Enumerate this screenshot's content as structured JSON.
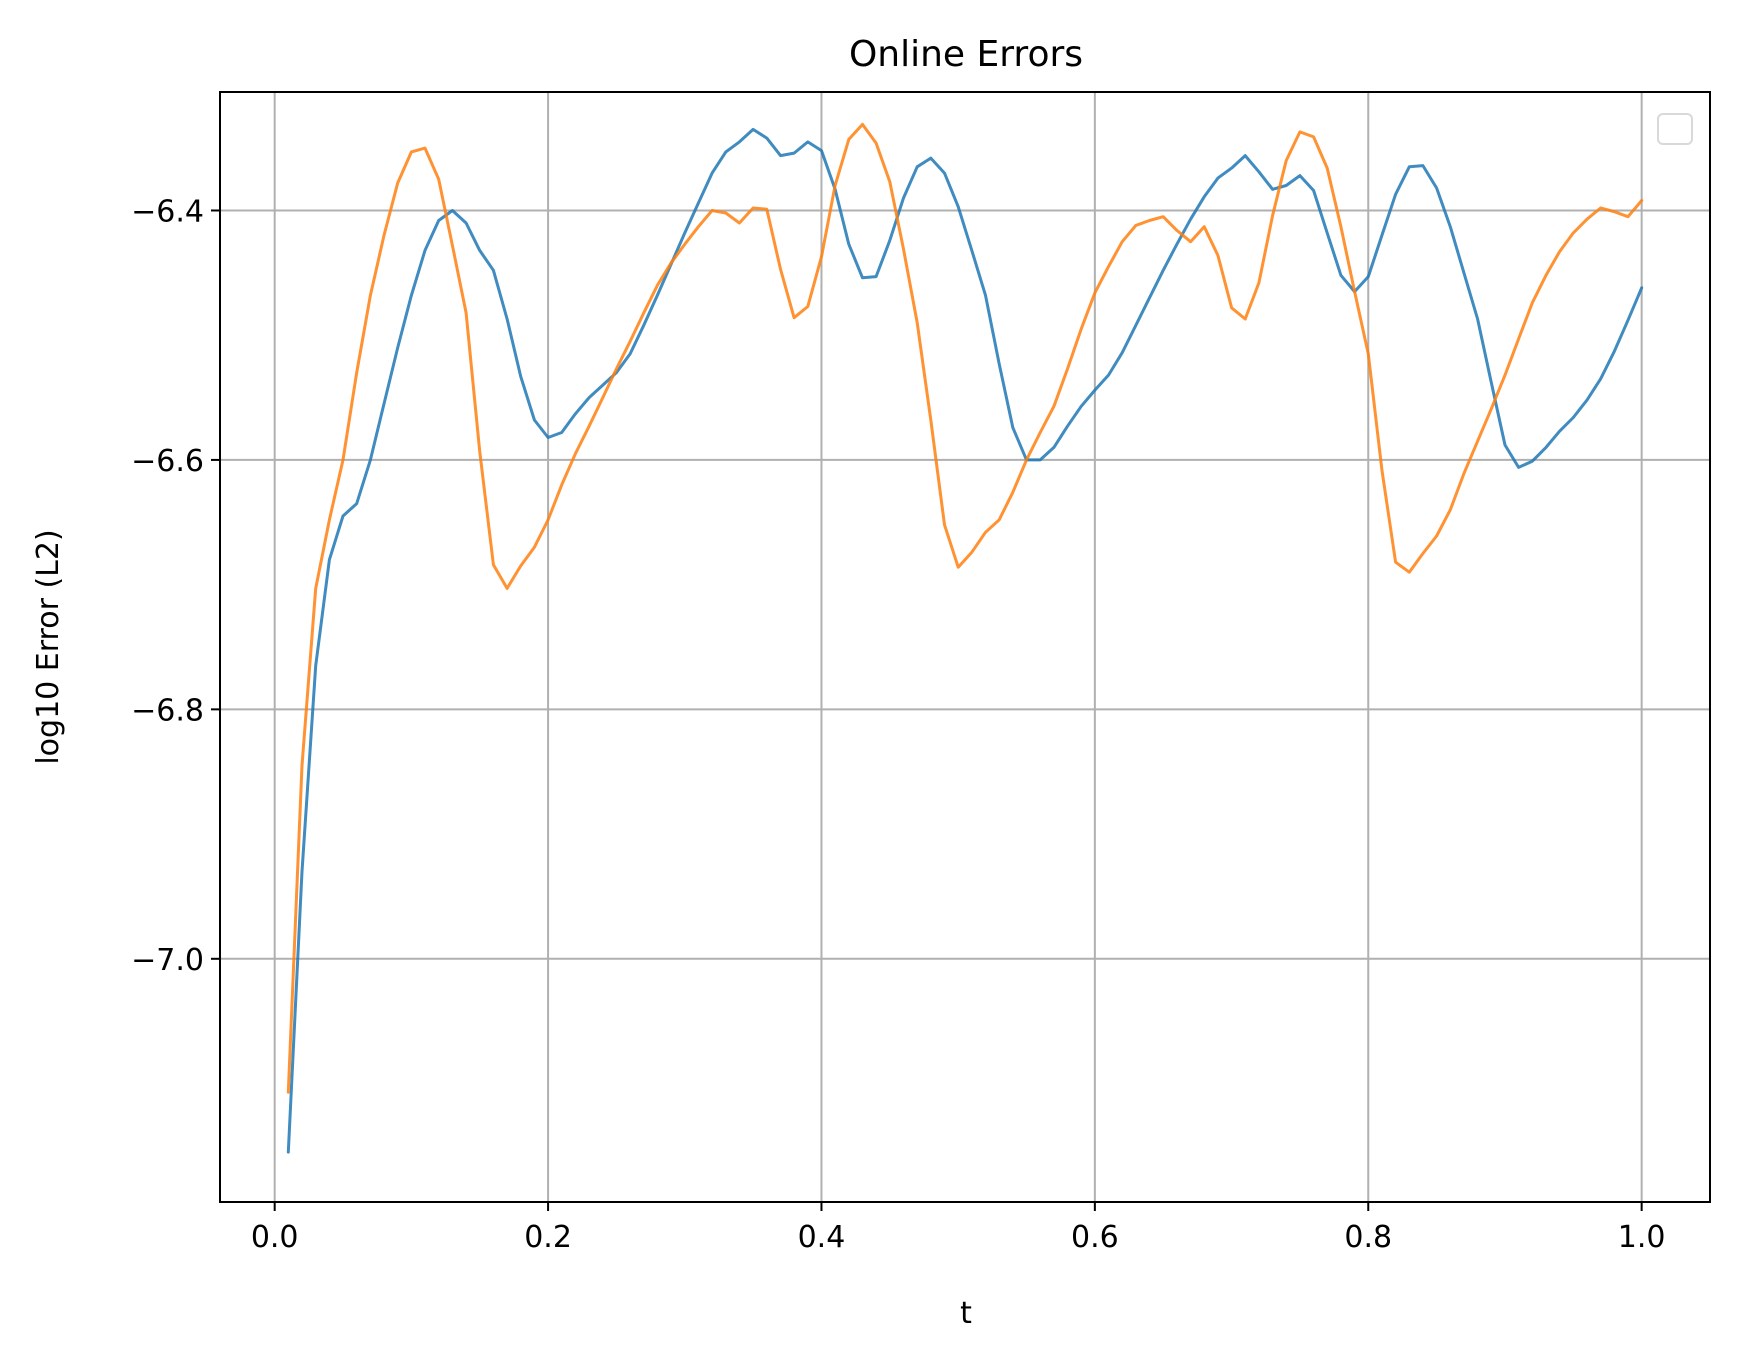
{
  "chart_data": {
    "type": "line",
    "title": "Online Errors",
    "xlabel": "t",
    "ylabel": "log10 Error (L2)",
    "xlim": [
      -0.04,
      1.05
    ],
    "ylim": [
      -7.195,
      -6.305
    ],
    "xticks": [
      0.0,
      0.2,
      0.4,
      0.6,
      0.8,
      1.0
    ],
    "xtick_labels": [
      "0.0",
      "0.2",
      "0.4",
      "0.6",
      "0.8",
      "1.0"
    ],
    "yticks": [
      -7.0,
      -6.8,
      -6.6,
      -6.4
    ],
    "ytick_labels": [
      "−7.0",
      "−6.8",
      "−6.6",
      "−6.4"
    ],
    "grid": true,
    "legend": "top-right, empty",
    "x": [
      0.01,
      0.02,
      0.03,
      0.04,
      0.05,
      0.06,
      0.07,
      0.08,
      0.09,
      0.1,
      0.11,
      0.12,
      0.13,
      0.14,
      0.15,
      0.16,
      0.17,
      0.18,
      0.19,
      0.2,
      0.21,
      0.22,
      0.23,
      0.24,
      0.25,
      0.26,
      0.27,
      0.28,
      0.29,
      0.3,
      0.31,
      0.32,
      0.33,
      0.34,
      0.35,
      0.36,
      0.37,
      0.38,
      0.39,
      0.4,
      0.41,
      0.42,
      0.43,
      0.44,
      0.45,
      0.46,
      0.47,
      0.48,
      0.49,
      0.5,
      0.51,
      0.52,
      0.53,
      0.54,
      0.55,
      0.56,
      0.57,
      0.58,
      0.59,
      0.6,
      0.61,
      0.62,
      0.63,
      0.64,
      0.65,
      0.66,
      0.67,
      0.68,
      0.69,
      0.7,
      0.71,
      0.72,
      0.73,
      0.74,
      0.75,
      0.76,
      0.77,
      0.78,
      0.79,
      0.8,
      0.81,
      0.82,
      0.83,
      0.84,
      0.85,
      0.86,
      0.87,
      0.88,
      0.89,
      0.9,
      0.91,
      0.92,
      0.93,
      0.94,
      0.95,
      0.96,
      0.97,
      0.98,
      0.99,
      1.0
    ],
    "series": [
      {
        "color": "#1f77b4",
        "values": [
          -7.155,
          -6.93,
          -6.765,
          -6.68,
          -6.645,
          -6.635,
          -6.6,
          -6.555,
          -6.51,
          -6.468,
          -6.432,
          -6.408,
          -6.4,
          -6.41,
          -6.432,
          -6.448,
          -6.487,
          -6.533,
          -6.568,
          -6.582,
          -6.578,
          -6.563,
          -6.55,
          -6.54,
          -6.53,
          -6.515,
          -6.492,
          -6.468,
          -6.443,
          -6.418,
          -6.394,
          -6.37,
          -6.353,
          -6.345,
          -6.335,
          -6.342,
          -6.356,
          -6.354,
          -6.345,
          -6.352,
          -6.383,
          -6.427,
          -6.454,
          -6.453,
          -6.424,
          -6.39,
          -6.365,
          -6.358,
          -6.37,
          -6.397,
          -6.432,
          -6.468,
          -6.523,
          -6.574,
          -6.6,
          -6.6,
          -6.59,
          -6.573,
          -6.557,
          -6.544,
          -6.532,
          -6.514,
          -6.492,
          -6.47,
          -6.448,
          -6.427,
          -6.407,
          -6.389,
          -6.374,
          -6.366,
          -6.356,
          -6.369,
          -6.383,
          -6.38,
          -6.372,
          -6.384,
          -6.418,
          -6.452,
          -6.465,
          -6.453,
          -6.42,
          -6.387,
          -6.365,
          -6.364,
          -6.382,
          -6.413,
          -6.45,
          -6.487,
          -6.538,
          -6.588,
          -6.606,
          -6.601,
          -6.59,
          -6.577,
          -6.566,
          -6.552,
          -6.535,
          -6.513,
          -6.488,
          -6.462
        ]
      },
      {
        "color": "#ff7f0e",
        "values": [
          -7.107,
          -6.845,
          -6.703,
          -6.648,
          -6.6,
          -6.53,
          -6.468,
          -6.42,
          -6.378,
          -6.353,
          -6.35,
          -6.375,
          -6.428,
          -6.482,
          -6.593,
          -6.684,
          -6.703,
          -6.685,
          -6.67,
          -6.648,
          -6.62,
          -6.595,
          -6.573,
          -6.55,
          -6.527,
          -6.505,
          -6.482,
          -6.46,
          -6.442,
          -6.427,
          -6.413,
          -6.4,
          -6.402,
          -6.41,
          -6.398,
          -6.399,
          -6.447,
          -6.486,
          -6.477,
          -6.437,
          -6.38,
          -6.343,
          -6.331,
          -6.346,
          -6.377,
          -6.431,
          -6.49,
          -6.568,
          -6.652,
          -6.686,
          -6.674,
          -6.658,
          -6.648,
          -6.626,
          -6.6,
          -6.578,
          -6.557,
          -6.527,
          -6.495,
          -6.466,
          -6.445,
          -6.425,
          -6.412,
          -6.408,
          -6.405,
          -6.416,
          -6.425,
          -6.413,
          -6.436,
          -6.478,
          -6.487,
          -6.458,
          -6.404,
          -6.36,
          -6.337,
          -6.341,
          -6.366,
          -6.413,
          -6.465,
          -6.515,
          -6.608,
          -6.682,
          -6.69,
          -6.675,
          -6.661,
          -6.64,
          -6.611,
          -6.585,
          -6.559,
          -6.532,
          -6.503,
          -6.474,
          -6.452,
          -6.433,
          -6.418,
          -6.407,
          -6.398,
          -6.401,
          -6.405,
          -6.392
        ]
      }
    ]
  }
}
